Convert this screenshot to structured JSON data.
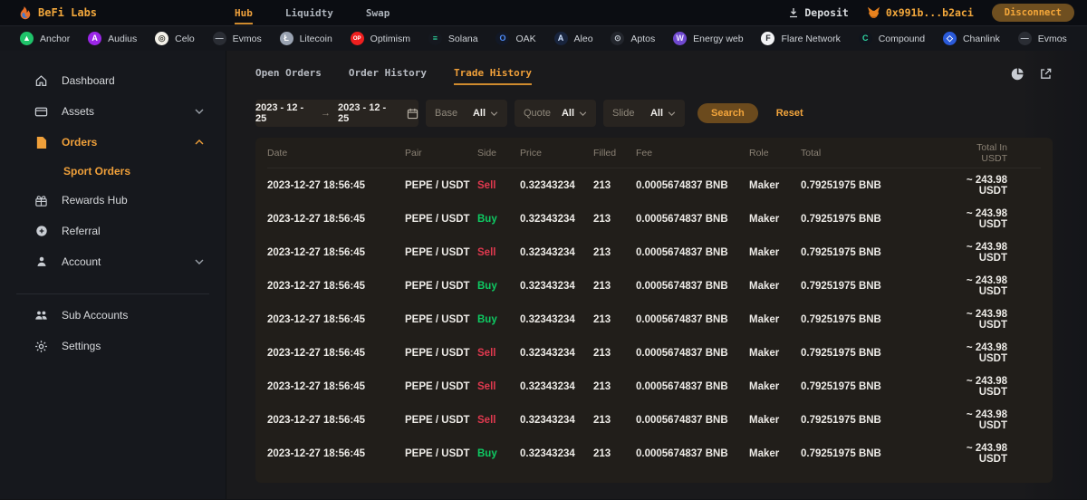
{
  "colors": {
    "accent": "#f0a23c",
    "buy": "#0ecb63",
    "sell": "#e0394f"
  },
  "topnav": {
    "brand": "BeFi Labs",
    "nav_items": [
      {
        "label": "Hub",
        "active": true
      },
      {
        "label": "Liquidty",
        "active": false
      },
      {
        "label": "Swap",
        "active": false
      }
    ],
    "deposit_label": "Deposit",
    "wallet_address": "0x991b...b2aci",
    "disconnect_label": "Disconnect"
  },
  "ticker": {
    "items": [
      {
        "name": "Anchor",
        "glyph": "▲",
        "bg": "#1fc36a",
        "fg": "#ffffff"
      },
      {
        "name": "Audius",
        "glyph": "A",
        "bg": "#9b26e8",
        "fg": "#ffffff"
      },
      {
        "name": "Celo",
        "glyph": "◎",
        "bg": "#f3f1e9",
        "fg": "#4a4a42"
      },
      {
        "name": "Evmos",
        "glyph": "—",
        "bg": "#2a2d34",
        "fg": "#b7bcc4"
      },
      {
        "name": "Litecoin",
        "glyph": "Ł",
        "bg": "#9aa3b2",
        "fg": "#ffffff"
      },
      {
        "name": "Optimism",
        "glyph": "OP",
        "bg": "#ef1f1f",
        "fg": "#ffffff"
      },
      {
        "name": "Solana",
        "glyph": "≡",
        "bg": "#15181f",
        "fg": "#2fe6a8"
      },
      {
        "name": "OAK",
        "glyph": "O",
        "bg": "#121826",
        "fg": "#4f8df9"
      },
      {
        "name": "Aleo",
        "glyph": "A",
        "bg": "#18243d",
        "fg": "#cfe2ff"
      },
      {
        "name": "Aptos",
        "glyph": "⊙",
        "bg": "#23262d",
        "fg": "#c3c9d2"
      },
      {
        "name": "Energy web",
        "glyph": "W",
        "bg": "#6f48cf",
        "fg": "#efe9ff"
      },
      {
        "name": "Flare Network",
        "glyph": "F",
        "bg": "#f2f3f5",
        "fg": "#23262b"
      },
      {
        "name": "Compound",
        "glyph": "C",
        "bg": "#10151d",
        "fg": "#2fd6a0"
      },
      {
        "name": "Chanlink",
        "glyph": "◇",
        "bg": "#2a5ada",
        "fg": "#ffffff"
      },
      {
        "name": "Evmos",
        "glyph": "—",
        "bg": "#2a2d34",
        "fg": "#b7bcc4"
      }
    ]
  },
  "sidebar": {
    "items": [
      {
        "label": "Dashboard",
        "chevron": "none",
        "active": false
      },
      {
        "label": "Assets",
        "chevron": "down",
        "active": false
      },
      {
        "label": "Orders",
        "chevron": "up",
        "active": true
      },
      {
        "label": "Rewards Hub",
        "chevron": "none",
        "active": false
      },
      {
        "label": "Referral",
        "chevron": "none",
        "active": false
      },
      {
        "label": "Account",
        "chevron": "down",
        "active": false
      }
    ],
    "orders_sub_item": "Sport Orders",
    "bottom_items": [
      {
        "label": "Sub Accounts"
      },
      {
        "label": "Settings"
      }
    ]
  },
  "main": {
    "tabs": [
      {
        "label": "Open Orders",
        "active": false
      },
      {
        "label": "Order History",
        "active": false
      },
      {
        "label": "Trade History",
        "active": true
      }
    ],
    "filters": {
      "date_from": "2023 - 12 - 25",
      "date_to": "2023 - 12 - 25",
      "arrow": "→",
      "groups": [
        {
          "label": "Base",
          "value": "All"
        },
        {
          "label": "Quote",
          "value": "All"
        },
        {
          "label": "Slide",
          "value": "All"
        }
      ],
      "search_label": "Search",
      "reset_label": "Reset"
    },
    "table": {
      "columns": [
        {
          "label": "Date",
          "key": "date"
        },
        {
          "label": "Pair",
          "key": "pair"
        },
        {
          "label": "Side",
          "key": "side"
        },
        {
          "label": "Price",
          "key": "price"
        },
        {
          "label": "Filled",
          "key": "filled"
        },
        {
          "label": "Fee",
          "key": "fee"
        },
        {
          "label": "Role",
          "key": "role"
        },
        {
          "label": "Total",
          "key": "total"
        },
        {
          "label": "Total In USDT",
          "key": "total_usdt",
          "align": "right"
        }
      ],
      "rows": [
        {
          "date": "2023-12-27 18:56:45",
          "pair": "PEPE / USDT",
          "side": "Sell",
          "price": "0.32343234",
          "filled": "213",
          "fee": "0.0005674837 BNB",
          "role": "Maker",
          "total": "0.79251975 BNB",
          "total_usdt": "~ 243.98 USDT"
        },
        {
          "date": "2023-12-27 18:56:45",
          "pair": "PEPE / USDT",
          "side": "Buy",
          "price": "0.32343234",
          "filled": "213",
          "fee": "0.0005674837 BNB",
          "role": "Maker",
          "total": "0.79251975 BNB",
          "total_usdt": "~ 243.98 USDT"
        },
        {
          "date": "2023-12-27 18:56:45",
          "pair": "PEPE / USDT",
          "side": "Sell",
          "price": "0.32343234",
          "filled": "213",
          "fee": "0.0005674837 BNB",
          "role": "Maker",
          "total": "0.79251975 BNB",
          "total_usdt": "~ 243.98 USDT"
        },
        {
          "date": "2023-12-27 18:56:45",
          "pair": "PEPE / USDT",
          "side": "Buy",
          "price": "0.32343234",
          "filled": "213",
          "fee": "0.0005674837 BNB",
          "role": "Maker",
          "total": "0.79251975 BNB",
          "total_usdt": "~ 243.98 USDT"
        },
        {
          "date": "2023-12-27 18:56:45",
          "pair": "PEPE / USDT",
          "side": "Buy",
          "price": "0.32343234",
          "filled": "213",
          "fee": "0.0005674837 BNB",
          "role": "Maker",
          "total": "0.79251975 BNB",
          "total_usdt": "~ 243.98 USDT"
        },
        {
          "date": "2023-12-27 18:56:45",
          "pair": "PEPE / USDT",
          "side": "Sell",
          "price": "0.32343234",
          "filled": "213",
          "fee": "0.0005674837 BNB",
          "role": "Maker",
          "total": "0.79251975 BNB",
          "total_usdt": "~ 243.98 USDT"
        },
        {
          "date": "2023-12-27 18:56:45",
          "pair": "PEPE / USDT",
          "side": "Sell",
          "price": "0.32343234",
          "filled": "213",
          "fee": "0.0005674837 BNB",
          "role": "Maker",
          "total": "0.79251975 BNB",
          "total_usdt": "~ 243.98 USDT"
        },
        {
          "date": "2023-12-27 18:56:45",
          "pair": "PEPE / USDT",
          "side": "Sell",
          "price": "0.32343234",
          "filled": "213",
          "fee": "0.0005674837 BNB",
          "role": "Maker",
          "total": "0.79251975 BNB",
          "total_usdt": "~ 243.98 USDT"
        },
        {
          "date": "2023-12-27 18:56:45",
          "pair": "PEPE / USDT",
          "side": "Buy",
          "price": "0.32343234",
          "filled": "213",
          "fee": "0.0005674837 BNB",
          "role": "Maker",
          "total": "0.79251975 BNB",
          "total_usdt": "~ 243.98 USDT"
        }
      ]
    }
  }
}
